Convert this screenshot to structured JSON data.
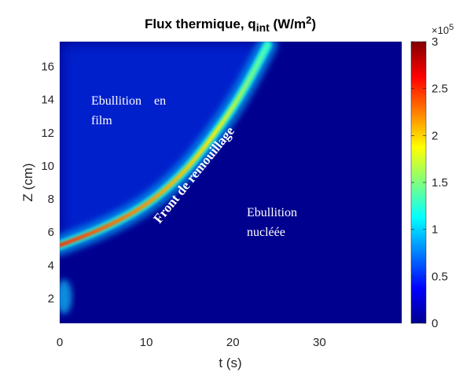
{
  "chart_data": {
    "type": "heatmap",
    "title": "Flux thermique, q",
    "title_sub": "int",
    "title_unit_pre": " (W/m",
    "title_unit_sup": "2",
    "title_unit_post": ")",
    "xlabel": "t (s)",
    "ylabel": "Z (cm)",
    "xlim": [
      0,
      39.5
    ],
    "ylim": [
      0.5,
      17.5
    ],
    "xticks": [
      0,
      10,
      20,
      30
    ],
    "yticks": [
      2,
      4,
      6,
      8,
      10,
      12,
      14,
      16
    ],
    "colormap": "jet",
    "colorbar": {
      "min": 0,
      "max": 3,
      "ticks": [
        0,
        0.5,
        1,
        1.5,
        2,
        2.5,
        3
      ],
      "tick_labels": [
        "0",
        "0.5",
        "1",
        "1.5",
        "2",
        "2.5",
        "3"
      ],
      "multiplier_base": "×10",
      "multiplier_exp": "5"
    },
    "quench_front": {
      "description_points_t_z": [
        [
          0,
          5.2
        ],
        [
          5,
          6.2
        ],
        [
          10,
          7.6
        ],
        [
          14,
          9.4
        ],
        [
          17,
          11.3
        ],
        [
          20,
          13.5
        ],
        [
          22,
          15.3
        ],
        [
          24,
          17.3
        ]
      ],
      "peak_flux_x1e5": 3.0
    },
    "annotations": {
      "film": [
        "Ebullition    en",
        "film"
      ],
      "front": "Front de remouillage",
      "nucleate": [
        "Ebullition",
        "nucléée"
      ]
    }
  }
}
